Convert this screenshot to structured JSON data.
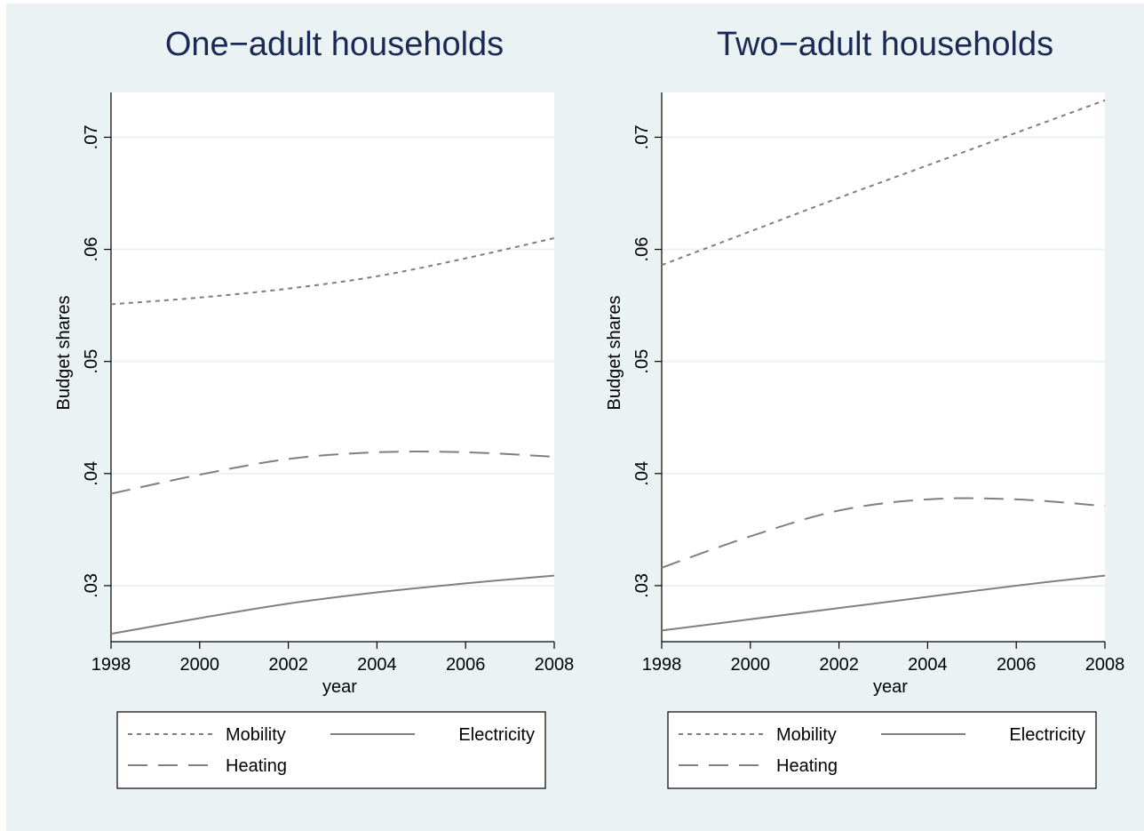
{
  "chart_data": [
    {
      "type": "line",
      "title": "One−adult households",
      "xlabel": "year",
      "ylabel": "Budget shares",
      "xlim": [
        1998,
        2008
      ],
      "ylim": [
        0.025,
        0.074
      ],
      "xticks": [
        "1998",
        "2000",
        "2002",
        "2004",
        "2006",
        "2008"
      ],
      "yticks": [
        ".03",
        ".04",
        ".05",
        ".06",
        ".07"
      ],
      "grid": true,
      "x": [
        1998,
        2000,
        2002,
        2004,
        2006,
        2008
      ],
      "series": [
        {
          "name": "Mobility",
          "style": "short-dash",
          "values": [
            0.0551,
            0.0557,
            0.0565,
            0.0576,
            0.0592,
            0.061
          ]
        },
        {
          "name": "Electricity",
          "style": "solid",
          "values": [
            0.0257,
            0.0271,
            0.0284,
            0.0294,
            0.0302,
            0.0309
          ]
        },
        {
          "name": "Heating",
          "style": "long-dash",
          "values": [
            0.0382,
            0.0399,
            0.0413,
            0.0419,
            0.0419,
            0.0415
          ]
        }
      ],
      "legend": {
        "placement": "bottom",
        "entries": [
          "Mobility",
          "Electricity",
          "Heating"
        ]
      }
    },
    {
      "type": "line",
      "title": "Two−adult households",
      "xlabel": "year",
      "ylabel": "Budget shares",
      "xlim": [
        1998,
        2008
      ],
      "ylim": [
        0.025,
        0.074
      ],
      "xticks": [
        "1998",
        "2000",
        "2002",
        "2004",
        "2006",
        "2008"
      ],
      "yticks": [
        ".03",
        ".04",
        ".05",
        ".06",
        ".07"
      ],
      "grid": true,
      "x": [
        1998,
        2000,
        2002,
        2004,
        2006,
        2008
      ],
      "series": [
        {
          "name": "Mobility",
          "style": "short-dash",
          "values": [
            0.0586,
            0.0616,
            0.0646,
            0.0675,
            0.0704,
            0.0733
          ]
        },
        {
          "name": "Electricity",
          "style": "solid",
          "values": [
            0.026,
            0.027,
            0.028,
            0.029,
            0.03,
            0.0309
          ]
        },
        {
          "name": "Heating",
          "style": "long-dash",
          "values": [
            0.0316,
            0.0344,
            0.0367,
            0.0377,
            0.0377,
            0.0371
          ]
        }
      ],
      "legend": {
        "placement": "bottom",
        "entries": [
          "Mobility",
          "Electricity",
          "Heating"
        ]
      }
    }
  ],
  "colors": {
    "background": "#eaf2f3",
    "plot_area": "#ffffff",
    "title": "#1a2a55",
    "line": "#7f7f7f",
    "grid": "#eaf2f3"
  }
}
